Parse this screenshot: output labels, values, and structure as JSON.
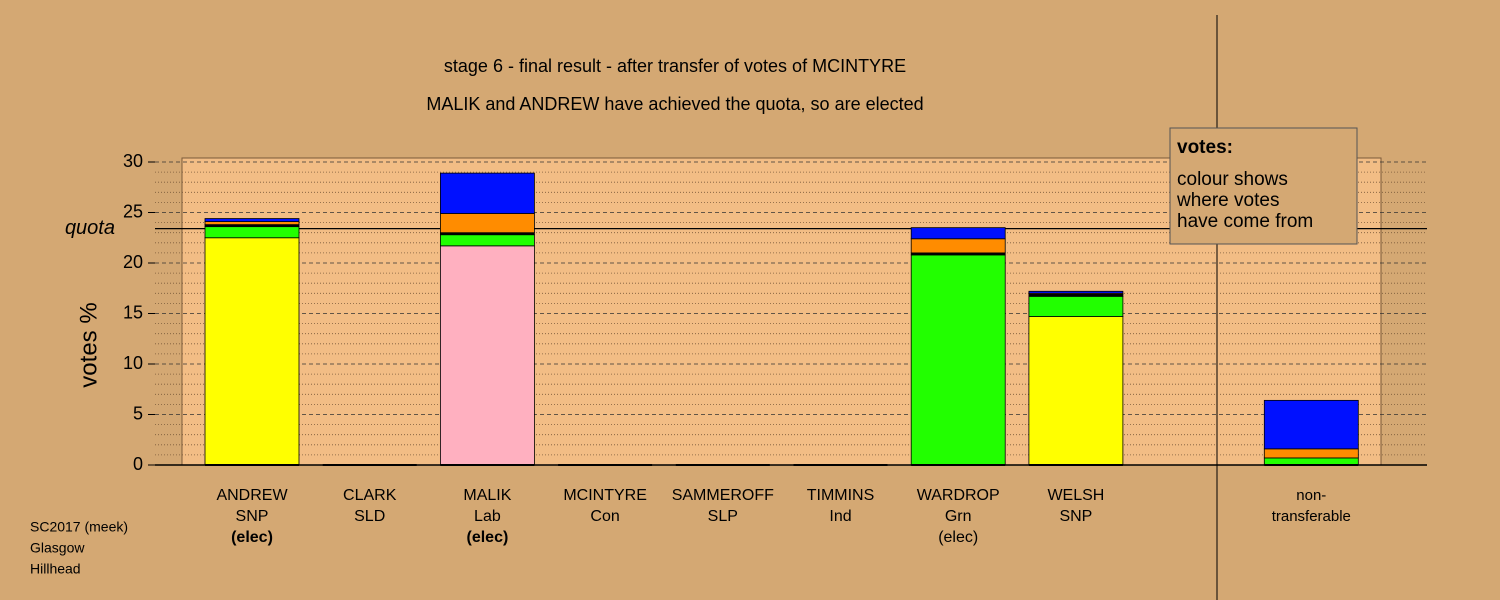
{
  "chart_data": {
    "type": "stacked_bar",
    "title": "stage 6 - final result - after transfer of votes of MCINTYRE",
    "subtitle": "MALIK and ANDREW have achieved the quota, so are elected",
    "y_label": "votes %",
    "categories": [
      [
        "ANDREW",
        "SNP",
        "(elec)"
      ],
      [
        "CLARK",
        "SLD"
      ],
      [
        "MALIK",
        "Lab",
        "(elec)"
      ],
      [
        "MCINTYRE",
        "Con"
      ],
      [
        "SAMMEROFF",
        "SLP"
      ],
      [
        "TIMMINS",
        "Ind"
      ],
      [
        "WARDROP",
        "Grn",
        "(elec)"
      ],
      [
        "WELSH",
        "SNP"
      ],
      [
        "non-",
        "transferable"
      ]
    ],
    "series": [
      {
        "color": "#ffff00",
        "values": [
          22.5,
          0,
          0,
          0,
          0,
          0,
          0,
          14.7,
          0
        ]
      },
      {
        "color": "#ffb0c0",
        "values": [
          0,
          0,
          21.7,
          0,
          0,
          0,
          0,
          0,
          0
        ]
      },
      {
        "color": "#22ff00",
        "values": [
          1.1,
          0,
          1.1,
          0,
          0,
          0,
          20.8,
          2.0,
          0.7
        ]
      },
      {
        "color": "#000000",
        "values": [
          0.2,
          0,
          0.2,
          0,
          0,
          0,
          0.2,
          0.2,
          0
        ]
      },
      {
        "color": "#ff8c00",
        "values": [
          0.3,
          0,
          1.9,
          0,
          0,
          0,
          1.4,
          0.1,
          0.9
        ]
      },
      {
        "color": "#0010ff",
        "values": [
          0.3,
          0,
          4.0,
          0,
          0,
          0,
          1.1,
          0.2,
          4.8
        ]
      }
    ],
    "quota": {
      "label": "quota",
      "value": 23.4
    },
    "ylim": [
      0,
      30
    ],
    "yticks": [
      0,
      5,
      10,
      15,
      20,
      25,
      30
    ],
    "minor_yticks": [
      1,
      2,
      3,
      4,
      6,
      7,
      8,
      9,
      11,
      12,
      13,
      14,
      16,
      17,
      18,
      19,
      21,
      22,
      23,
      24,
      26,
      27,
      28,
      29
    ],
    "grid": true,
    "legend": {
      "title": "votes:",
      "lines": [
        "colour shows",
        "where votes",
        "have come from"
      ]
    },
    "footer": [
      "SC2017 (meek)",
      "Glasgow",
      "Hillhead"
    ]
  }
}
